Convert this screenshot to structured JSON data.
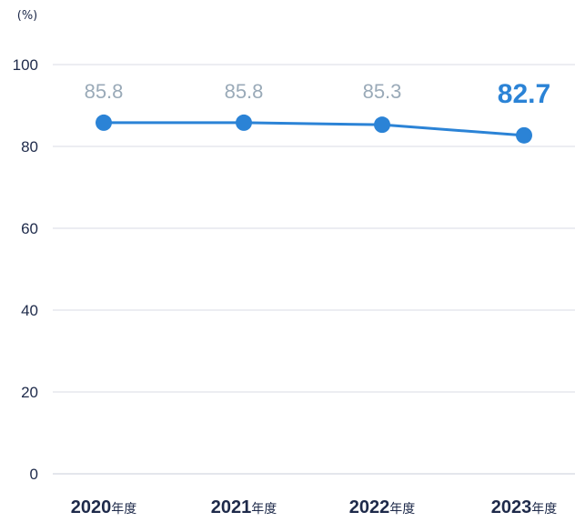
{
  "chart_data": {
    "type": "line",
    "unit_label": "(%)",
    "categories": [
      "2020",
      "2021",
      "2022",
      "2023"
    ],
    "category_suffix": "年度",
    "values": [
      85.8,
      85.8,
      85.3,
      82.7
    ],
    "value_labels": [
      "85.8",
      "85.8",
      "85.3",
      "82.7"
    ],
    "highlight_index": 3,
    "ylim": [
      0,
      100
    ],
    "yticks": [
      "0",
      "20",
      "40",
      "60",
      "80",
      "100"
    ],
    "grid": true,
    "colors": {
      "line": "#2b83d6",
      "highlight": "#2b83d6",
      "label": "#9aaab8",
      "grid": "#d8dbe6",
      "text": "#1e2a4a"
    }
  }
}
